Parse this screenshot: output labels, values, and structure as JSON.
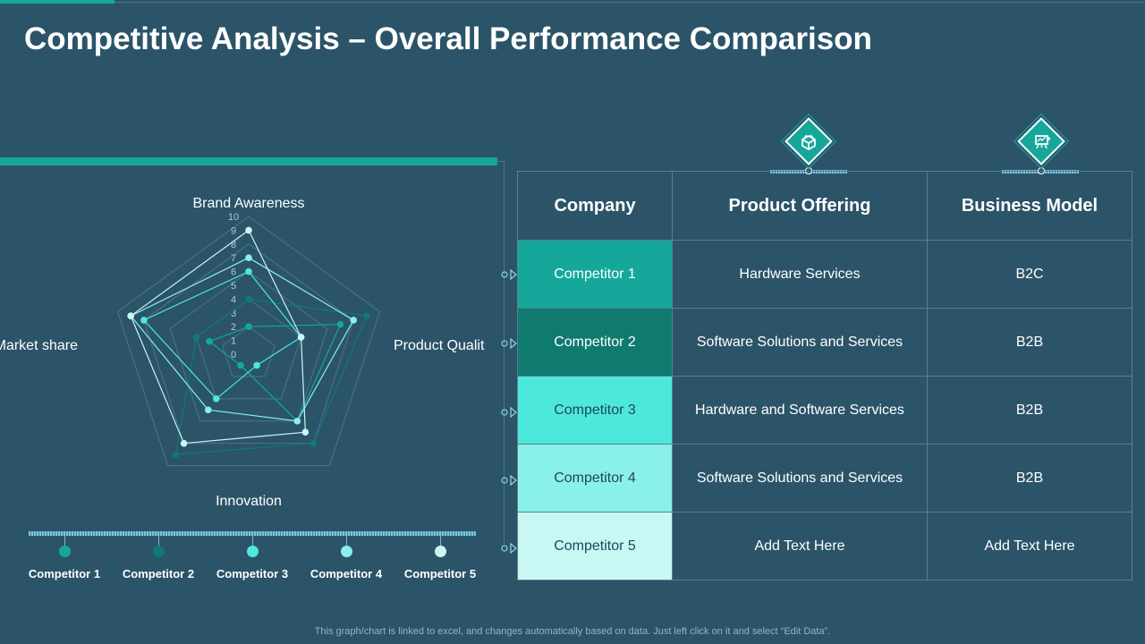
{
  "title": "Competitive Analysis – Overall Performance Comparison",
  "footer_note": "This graph/chart is linked to excel,  and changes automatically based on data. Just left click on it and select “Edit Data”.",
  "colors": {
    "background": "#2b5468",
    "accent": "#16a79b",
    "competitor_1": "#16a79b",
    "competitor_2": "#0f7a70",
    "competitor_3": "#4de8dc",
    "competitor_4": "#8af0ea",
    "competitor_5": "#c8f7f4"
  },
  "chart_data": {
    "type": "radar",
    "axes": [
      "Brand Awareness",
      "Product Qualit",
      "Innovation",
      "Market share",
      "Innovation"
    ],
    "axis_labels": [
      "Brand Awareness",
      "Product Qualit",
      "",
      "Innovation",
      "Market share"
    ],
    "scale_ticks": [
      "0",
      "1",
      "2",
      "3",
      "4",
      "5",
      "6",
      "7",
      "8",
      "9",
      "10"
    ],
    "range": [
      0,
      10
    ],
    "series": [
      {
        "name": "Competitor 1",
        "values": [
          2,
          7,
          6,
          1,
          3
        ]
      },
      {
        "name": "Competitor 2",
        "values": [
          4,
          9,
          8,
          9,
          4
        ]
      },
      {
        "name": "Competitor 3",
        "values": [
          6,
          4,
          1,
          4,
          8
        ]
      },
      {
        "name": "Competitor 4",
        "values": [
          7,
          8,
          6,
          5,
          9
        ]
      },
      {
        "name": "Competitor 5",
        "values": [
          9,
          4,
          7,
          8,
          9
        ]
      }
    ]
  },
  "legend": [
    "Competitor 1",
    "Competitor 2",
    "Competitor 3",
    "Competitor 4",
    "Competitor 5"
  ],
  "icons": [
    "handshake-box-icon",
    "presentation-board-icon"
  ],
  "table": {
    "headers": [
      "Company",
      "Product Offering",
      "Business Model"
    ],
    "rows": [
      [
        "Competitor 1",
        "Hardware Services",
        "B2C"
      ],
      [
        "Competitor 2",
        "Software Solutions and Services",
        "B2B"
      ],
      [
        "Competitor 3",
        "Hardware and Software Services",
        "B2B"
      ],
      [
        "Competitor 4",
        "Software Solutions and Services",
        "B2B"
      ],
      [
        "Competitor 5",
        "Add Text Here",
        "Add Text Here"
      ]
    ]
  }
}
